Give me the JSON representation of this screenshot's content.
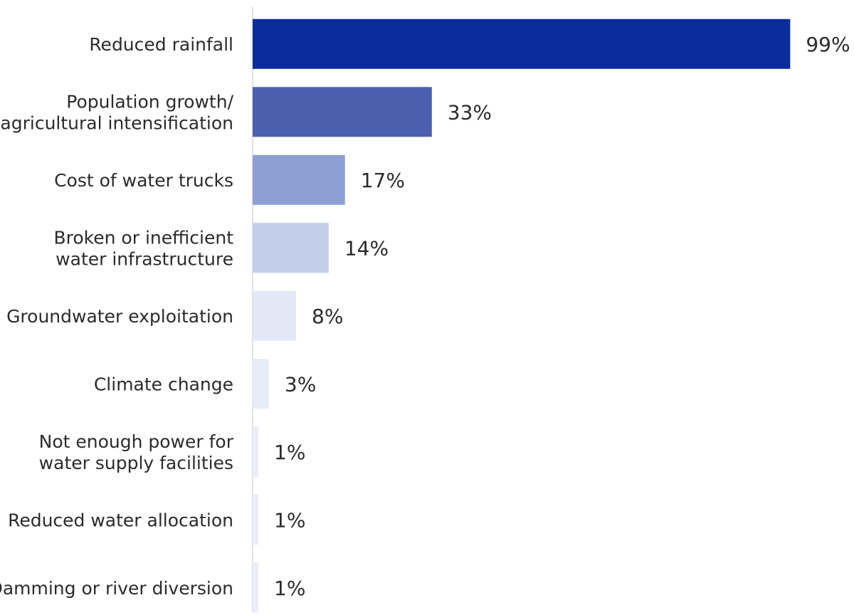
{
  "chart_data": {
    "type": "bar",
    "orientation": "horizontal",
    "categories": [
      [
        "Reduced rainfall"
      ],
      [
        "Population growth/",
        "agricultural intensification"
      ],
      [
        "Cost of water trucks"
      ],
      [
        "Broken or inefficient",
        "water infrastructure"
      ],
      [
        "Groundwater exploitation"
      ],
      [
        "Climate change"
      ],
      [
        "Not enough power for",
        "water supply facilities"
      ],
      [
        "Reduced water allocation"
      ],
      [
        "Damming or river diversion"
      ]
    ],
    "values": [
      99,
      33,
      17,
      14,
      8,
      3,
      1,
      1,
      1
    ],
    "value_labels": [
      "99%",
      "33%",
      "17%",
      "14%",
      "8%",
      "3%",
      "1%",
      "1%",
      "1%"
    ],
    "bar_colors": [
      "#0b2d9c",
      "#4a5fae",
      "#8d9fd3",
      "#c3ceeb",
      "#e3e8f6",
      "#e8ecf7",
      "#eaedf7",
      "#eaedf7",
      "#eaedf7"
    ],
    "axis_color": "#d8d8d8",
    "text_color": "#2b2b2b",
    "title": "",
    "xlabel": "",
    "ylabel": "",
    "xlim": [
      0,
      100
    ],
    "grid": false,
    "legend": "none"
  }
}
